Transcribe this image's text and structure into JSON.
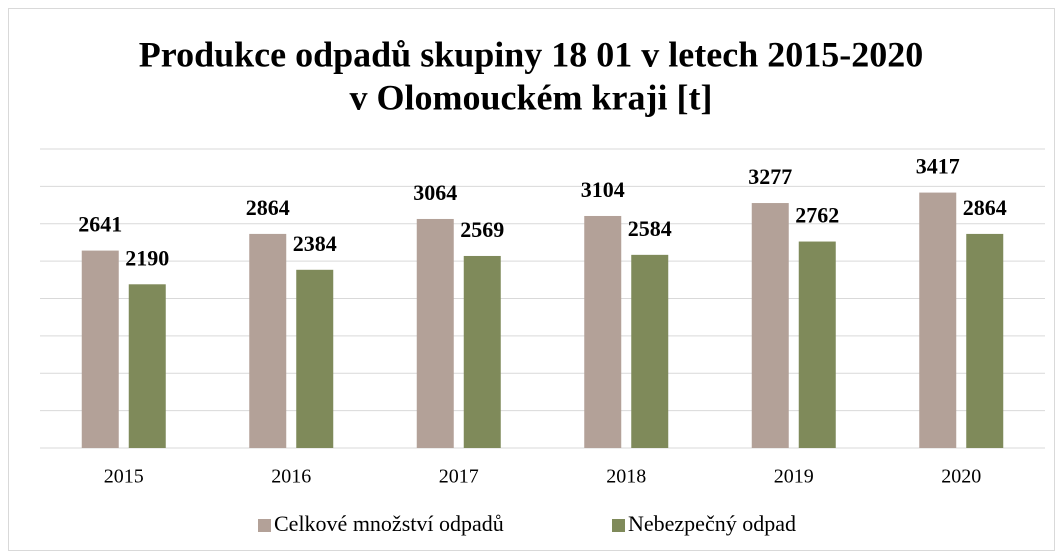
{
  "chart_data": {
    "type": "bar",
    "title": [
      "Produkce odpadů skupiny 18 01 v letech 2015-2020",
      "v Olomouckém kraji [t]"
    ],
    "categories": [
      "2015",
      "2016",
      "2017",
      "2018",
      "2019",
      "2020"
    ],
    "series": [
      {
        "name": "Celkové množství odpadů",
        "color": "#b3a198",
        "values": [
          2641,
          2864,
          3064,
          3104,
          3277,
          3417
        ]
      },
      {
        "name": "Nebezpečný odpad",
        "color": "#7f8a5a",
        "values": [
          2190,
          2384,
          2569,
          2584,
          2762,
          2864
        ]
      }
    ],
    "ylim": [
      0,
      4000
    ],
    "yticks": [
      0,
      500,
      1000,
      1500,
      2000,
      2500,
      3000,
      3500,
      4000
    ],
    "grid": true,
    "legend": "bottom"
  }
}
